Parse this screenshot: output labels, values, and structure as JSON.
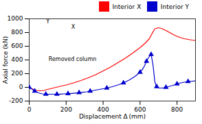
{
  "chart_data": {
    "type": "line",
    "xlabel": "Displacement Δ (mm)",
    "ylabel": "Axial force (kN)",
    "xlim": [
      0,
      900
    ],
    "ylim": [
      -200,
      1000
    ],
    "xticks": [
      0,
      200,
      400,
      600,
      800
    ],
    "yticks": [
      -200,
      0,
      200,
      400,
      600,
      800,
      1000
    ],
    "grid": false,
    "legend": "upper right",
    "series": [
      {
        "name": "Interior X",
        "color": "#ff0000",
        "marker": "none",
        "x": [
          0,
          10,
          25,
          40,
          60,
          80,
          100,
          130,
          160,
          200,
          240,
          280,
          320,
          360,
          400,
          440,
          480,
          520,
          560,
          600,
          630,
          650,
          660,
          670,
          680,
          700,
          720,
          740,
          760,
          780,
          800,
          820,
          840,
          860,
          880,
          900
        ],
        "values": [
          0,
          -15,
          -30,
          -45,
          -50,
          -45,
          -30,
          -10,
          10,
          35,
          65,
          100,
          140,
          185,
          240,
          295,
          360,
          425,
          500,
          580,
          650,
          710,
          760,
          810,
          855,
          870,
          855,
          830,
          800,
          770,
          745,
          725,
          710,
          700,
          690,
          685
        ]
      },
      {
        "name": "Interior Y",
        "color": "#0000cc",
        "marker": "triangle",
        "x": [
          0,
          10,
          20,
          30,
          50,
          70,
          90,
          110,
          130,
          150,
          170,
          190,
          210,
          230,
          250,
          270,
          290,
          310,
          330,
          360,
          390,
          420,
          450,
          480,
          510,
          540,
          570,
          600,
          615,
          625,
          635,
          645,
          655,
          660,
          670,
          680,
          690,
          700,
          720,
          740,
          760,
          780,
          800,
          820,
          840,
          860,
          880,
          900
        ],
        "values": [
          0,
          -15,
          -35,
          -55,
          -80,
          -95,
          -100,
          -100,
          -100,
          -100,
          -98,
          -95,
          -92,
          -88,
          -83,
          -78,
          -72,
          -65,
          -55,
          -40,
          -25,
          -10,
          10,
          35,
          65,
          105,
          155,
          220,
          270,
          320,
          380,
          430,
          465,
          480,
          330,
          80,
          10,
          -10,
          -10,
          0,
          15,
          30,
          50,
          65,
          75,
          85,
          90,
          95
        ]
      }
    ],
    "annotations": [
      {
        "text": "Y",
        "x": 92,
        "y": 965
      },
      {
        "text": "X",
        "x": 228,
        "y": 880
      },
      {
        "text": "Removed column",
        "x": 105,
        "y": 410
      }
    ]
  }
}
